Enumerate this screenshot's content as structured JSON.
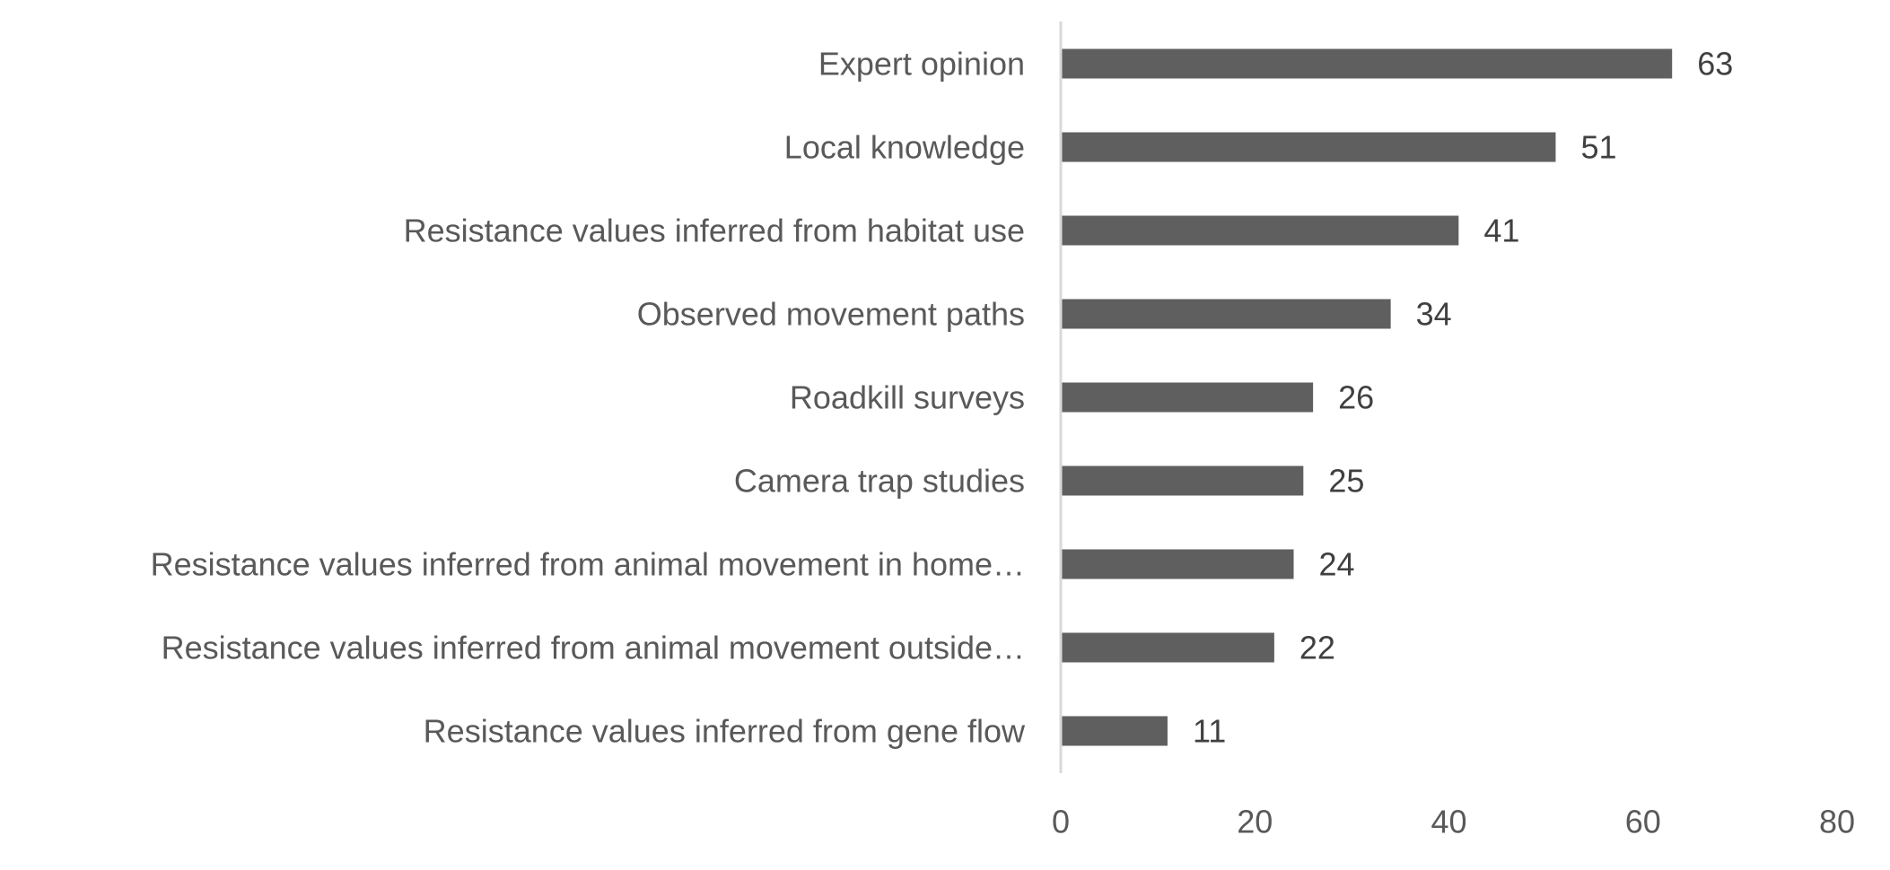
{
  "chart_data": {
    "type": "bar",
    "orientation": "horizontal",
    "categories": [
      "Expert opinion",
      "Local knowledge",
      "Resistance values inferred from habitat use",
      "Observed movement paths",
      "Roadkill surveys",
      "Camera trap studies",
      "Resistance values inferred from animal movement in home…",
      "Resistance values inferred from animal movement outside…",
      "Resistance values inferred from gene flow"
    ],
    "values": [
      63,
      51,
      41,
      34,
      26,
      25,
      24,
      22,
      11
    ],
    "xlim": [
      0,
      80
    ],
    "xticks": [
      0,
      20,
      40,
      60,
      80
    ],
    "xtick_labels": [
      "0",
      "20",
      "40",
      "60",
      "80"
    ],
    "data_labels": [
      "63",
      "51",
      "41",
      "34",
      "26",
      "25",
      "24",
      "22",
      "11"
    ],
    "title": "",
    "xlabel": "",
    "ylabel": "",
    "grid": false,
    "legend": "none",
    "colors": {
      "bar": "#5f5f5f",
      "axis": "#d9d9d9",
      "label": "#595959",
      "data_label": "#404040"
    }
  }
}
